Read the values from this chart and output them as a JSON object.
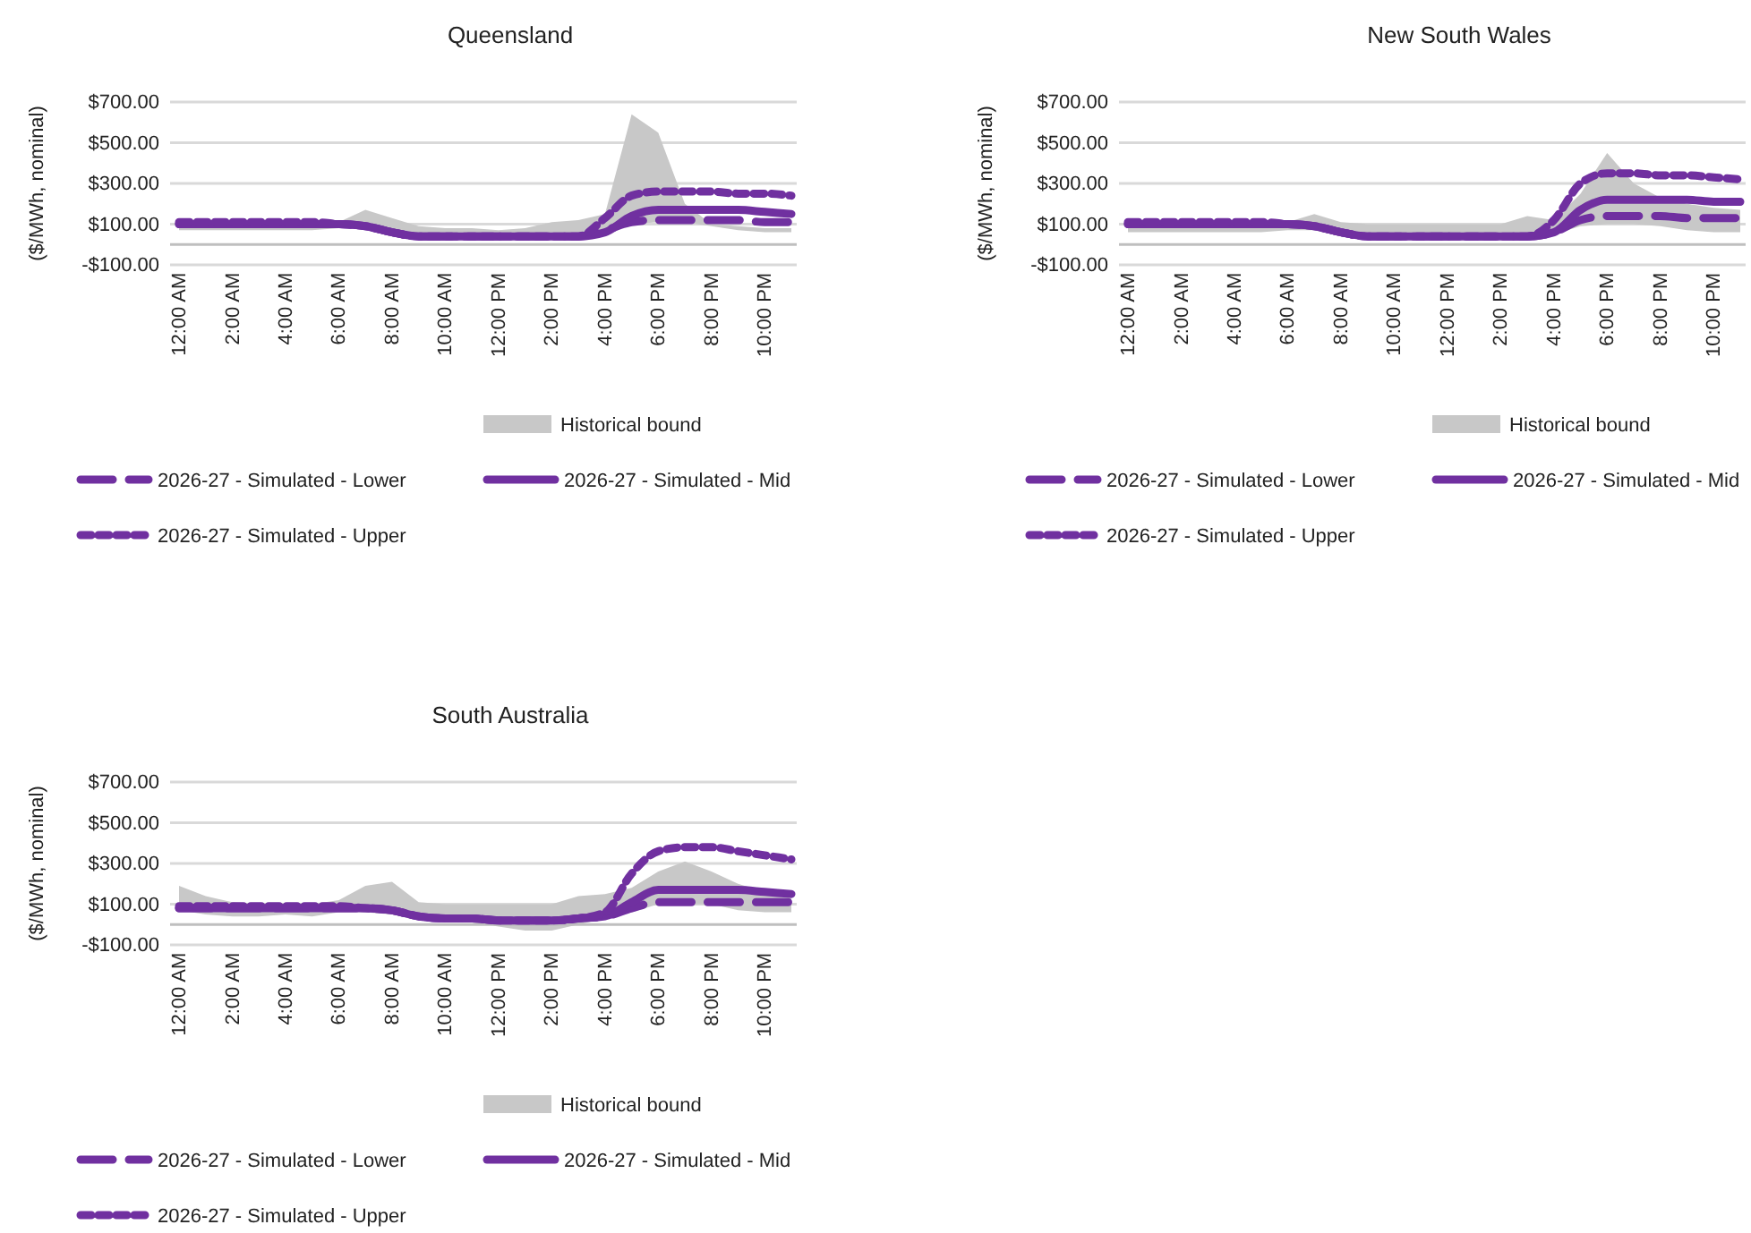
{
  "chart_data": [
    {
      "type": "line",
      "title": "Queensland",
      "ylabel": "($/MWh, nominal)",
      "legend": "bottom",
      "grid": "y",
      "ylim": [
        -100,
        700
      ],
      "yticks": [
        {
          "value": -100,
          "label": "-$100.00"
        },
        {
          "value": 100,
          "label": "$100.00"
        },
        {
          "value": 300,
          "label": "$300.00"
        },
        {
          "value": 500,
          "label": "$500.00"
        },
        {
          "value": 700,
          "label": "$700.00"
        }
      ],
      "categories": [
        "12:00 AM",
        null,
        "2:00 AM",
        null,
        "4:00 AM",
        null,
        "6:00 AM",
        null,
        "8:00 AM",
        null,
        "10:00 AM",
        null,
        "12:00 PM",
        null,
        "2:00 PM",
        null,
        "4:00 PM",
        null,
        "6:00 PM",
        null,
        "8:00 PM",
        null,
        "10:00 PM",
        null
      ],
      "series": [
        {
          "name": "Historical bound",
          "type": "line",
          "color": "#c8c8c8",
          "lower": [
            70,
            70,
            70,
            70,
            70,
            70,
            80,
            80,
            50,
            30,
            30,
            30,
            30,
            30,
            30,
            30,
            50,
            100,
            110,
            110,
            90,
            70,
            60,
            60
          ],
          "upper": [
            110,
            100,
            100,
            100,
            100,
            100,
            110,
            170,
            130,
            90,
            80,
            80,
            70,
            80,
            110,
            120,
            150,
            640,
            550,
            200,
            100,
            90,
            80,
            80
          ],
          "values": [
            null,
            null,
            null,
            null,
            null,
            null,
            null,
            null,
            null,
            null,
            null,
            null,
            null,
            null,
            null,
            null,
            null,
            null,
            null,
            null,
            null,
            null,
            null,
            null
          ]
        },
        {
          "name": "2026-27 - Simulated - Lower",
          "type": "line",
          "line_style": "dashed",
          "color": "#7030a0",
          "values": [
            100,
            100,
            100,
            100,
            100,
            100,
            100,
            90,
            60,
            40,
            40,
            40,
            40,
            40,
            40,
            40,
            70,
            110,
            120,
            120,
            120,
            120,
            110,
            110
          ]
        },
        {
          "name": "2026-27 - Simulated - Mid",
          "type": "line",
          "line_style": "solid",
          "color": "#7030a0",
          "values": [
            100,
            100,
            100,
            100,
            100,
            100,
            100,
            90,
            60,
            40,
            40,
            40,
            40,
            40,
            40,
            40,
            60,
            140,
            170,
            170,
            170,
            170,
            160,
            150
          ]
        },
        {
          "name": "2026-27 - Simulated - Upper",
          "type": "line",
          "line_style": "dotted",
          "color": "#7030a0",
          "values": [
            110,
            110,
            110,
            110,
            110,
            110,
            100,
            90,
            60,
            40,
            40,
            40,
            40,
            40,
            40,
            40,
            130,
            240,
            260,
            260,
            260,
            250,
            250,
            240
          ]
        }
      ]
    },
    {
      "type": "line",
      "title": "New South Wales",
      "ylabel": "($/MWh, nominal)",
      "legend": "bottom",
      "grid": "y",
      "ylim": [
        -100,
        700
      ],
      "yticks": [
        {
          "value": -100,
          "label": "-$100.00"
        },
        {
          "value": 100,
          "label": "$100.00"
        },
        {
          "value": 300,
          "label": "$300.00"
        },
        {
          "value": 500,
          "label": "$500.00"
        },
        {
          "value": 700,
          "label": "$700.00"
        }
      ],
      "categories": [
        "12:00 AM",
        null,
        "2:00 AM",
        null,
        "4:00 AM",
        null,
        "6:00 AM",
        null,
        "8:00 AM",
        null,
        "10:00 AM",
        null,
        "12:00 PM",
        null,
        "2:00 PM",
        null,
        "4:00 PM",
        null,
        "6:00 PM",
        null,
        "8:00 PM",
        null,
        "10:00 PM",
        null
      ],
      "series": [
        {
          "name": "Historical bound",
          "type": "line",
          "color": "#c8c8c8",
          "lower": [
            60,
            60,
            60,
            60,
            60,
            60,
            70,
            70,
            40,
            30,
            30,
            30,
            30,
            30,
            30,
            30,
            50,
            90,
            100,
            100,
            90,
            70,
            60,
            60
          ],
          "upper": [
            110,
            100,
            100,
            100,
            100,
            100,
            110,
            150,
            110,
            100,
            100,
            100,
            100,
            100,
            100,
            140,
            120,
            250,
            450,
            300,
            230,
            200,
            180,
            170
          ],
          "values": [
            null,
            null,
            null,
            null,
            null,
            null,
            null,
            null,
            null,
            null,
            null,
            null,
            null,
            null,
            null,
            null,
            null,
            null,
            null,
            null,
            null,
            null,
            null,
            null
          ]
        },
        {
          "name": "2026-27 - Simulated - Lower",
          "type": "line",
          "line_style": "dashed",
          "color": "#7030a0",
          "values": [
            100,
            100,
            100,
            100,
            100,
            100,
            100,
            90,
            60,
            40,
            40,
            40,
            40,
            40,
            40,
            40,
            60,
            120,
            140,
            140,
            140,
            130,
            130,
            130
          ]
        },
        {
          "name": "2026-27 - Simulated - Mid",
          "type": "line",
          "line_style": "solid",
          "color": "#7030a0",
          "values": [
            100,
            100,
            100,
            100,
            100,
            100,
            100,
            90,
            60,
            40,
            40,
            40,
            40,
            40,
            40,
            40,
            60,
            170,
            220,
            220,
            220,
            220,
            210,
            210
          ]
        },
        {
          "name": "2026-27 - Simulated - Upper",
          "type": "line",
          "line_style": "dotted",
          "color": "#7030a0",
          "values": [
            110,
            110,
            110,
            110,
            110,
            110,
            100,
            90,
            60,
            40,
            40,
            40,
            40,
            40,
            40,
            40,
            120,
            300,
            350,
            350,
            340,
            340,
            330,
            320
          ]
        }
      ]
    },
    {
      "type": "line",
      "title": "South Australia",
      "ylabel": "($/MWh, nominal)",
      "legend": "bottom",
      "grid": "y",
      "ylim": [
        -100,
        700
      ],
      "yticks": [
        {
          "value": -100,
          "label": "-$100.00"
        },
        {
          "value": 100,
          "label": "$100.00"
        },
        {
          "value": 300,
          "label": "$300.00"
        },
        {
          "value": 500,
          "label": "$500.00"
        },
        {
          "value": 700,
          "label": "$700.00"
        }
      ],
      "categories": [
        "12:00 AM",
        null,
        "2:00 AM",
        null,
        "4:00 AM",
        null,
        "6:00 AM",
        null,
        "8:00 AM",
        null,
        "10:00 AM",
        null,
        "12:00 PM",
        null,
        "2:00 PM",
        null,
        "4:00 PM",
        null,
        "6:00 PM",
        null,
        "8:00 PM",
        null,
        "10:00 PM",
        null
      ],
      "series": [
        {
          "name": "Historical bound",
          "type": "line",
          "color": "#c8c8c8",
          "lower": [
            70,
            50,
            40,
            40,
            50,
            40,
            60,
            60,
            50,
            20,
            20,
            10,
            -10,
            -30,
            -30,
            0,
            30,
            60,
            100,
            100,
            100,
            70,
            60,
            60
          ],
          "upper": [
            190,
            140,
            110,
            100,
            100,
            100,
            120,
            190,
            210,
            110,
            100,
            100,
            100,
            100,
            100,
            140,
            150,
            180,
            260,
            310,
            260,
            200,
            160,
            150
          ],
          "values": [
            null,
            null,
            null,
            null,
            null,
            null,
            null,
            null,
            null,
            null,
            null,
            null,
            null,
            null,
            null,
            null,
            null,
            null,
            null,
            null,
            null,
            null,
            null,
            null
          ]
        },
        {
          "name": "2026-27 - Simulated - Lower",
          "type": "line",
          "line_style": "dashed",
          "color": "#7030a0",
          "values": [
            80,
            80,
            80,
            80,
            80,
            80,
            80,
            80,
            70,
            40,
            30,
            30,
            20,
            20,
            20,
            30,
            40,
            80,
            110,
            110,
            110,
            110,
            110,
            110
          ]
        },
        {
          "name": "2026-27 - Simulated - Mid",
          "type": "line",
          "line_style": "solid",
          "color": "#7030a0",
          "values": [
            80,
            80,
            80,
            80,
            80,
            80,
            80,
            80,
            70,
            40,
            30,
            30,
            20,
            20,
            20,
            30,
            40,
            110,
            170,
            170,
            170,
            170,
            160,
            150
          ]
        },
        {
          "name": "2026-27 - Simulated - Upper",
          "type": "line",
          "line_style": "dotted",
          "color": "#7030a0",
          "values": [
            90,
            90,
            90,
            90,
            90,
            90,
            90,
            80,
            70,
            40,
            30,
            30,
            20,
            20,
            20,
            30,
            60,
            250,
            360,
            380,
            380,
            360,
            340,
            320
          ]
        }
      ]
    }
  ]
}
